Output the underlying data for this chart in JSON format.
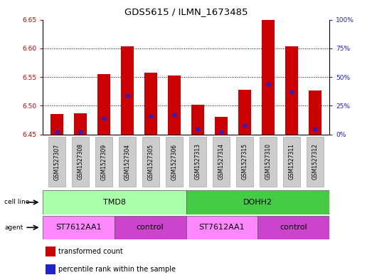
{
  "title": "GDS5615 / ILMN_1673485",
  "samples": [
    "GSM1527307",
    "GSM1527308",
    "GSM1527309",
    "GSM1527304",
    "GSM1527305",
    "GSM1527306",
    "GSM1527313",
    "GSM1527314",
    "GSM1527315",
    "GSM1527310",
    "GSM1527311",
    "GSM1527312"
  ],
  "transformed_counts": [
    6.485,
    6.487,
    6.555,
    6.603,
    6.557,
    6.553,
    6.502,
    6.48,
    6.528,
    6.649,
    6.604,
    6.527
  ],
  "percentile_ranks": [
    2,
    2,
    14,
    34,
    16,
    17,
    5,
    2,
    8,
    44,
    37,
    5
  ],
  "y_min": 6.45,
  "y_max": 6.65,
  "y_ticks": [
    6.45,
    6.5,
    6.55,
    6.6,
    6.65
  ],
  "right_y_ticks": [
    0,
    25,
    50,
    75,
    100
  ],
  "right_y_labels": [
    "0%",
    "25%",
    "50%",
    "75%",
    "100%"
  ],
  "bar_color": "#cc0000",
  "dot_color": "#2222cc",
  "cell_line_light": "#aaffaa",
  "cell_line_dark": "#44cc44",
  "agent_light": "#ff88ff",
  "agent_dark": "#cc44cc",
  "cell_lines": [
    {
      "label": "TMD8",
      "start": 0,
      "end": 6
    },
    {
      "label": "DOHH2",
      "start": 6,
      "end": 12
    }
  ],
  "agents": [
    {
      "label": "ST7612AA1",
      "start": 0,
      "end": 3
    },
    {
      "label": "control",
      "start": 3,
      "end": 6
    },
    {
      "label": "ST7612AA1",
      "start": 6,
      "end": 9
    },
    {
      "label": "control",
      "start": 9,
      "end": 12
    }
  ],
  "legend_items": [
    {
      "label": "transformed count",
      "color": "#cc0000"
    },
    {
      "label": "percentile rank within the sample",
      "color": "#2222cc"
    }
  ],
  "left_tick_color": "#cc0000",
  "right_tick_color": "#2222cc",
  "tick_label_fontsize": 6.5,
  "title_fontsize": 9.5,
  "bar_width": 0.55
}
